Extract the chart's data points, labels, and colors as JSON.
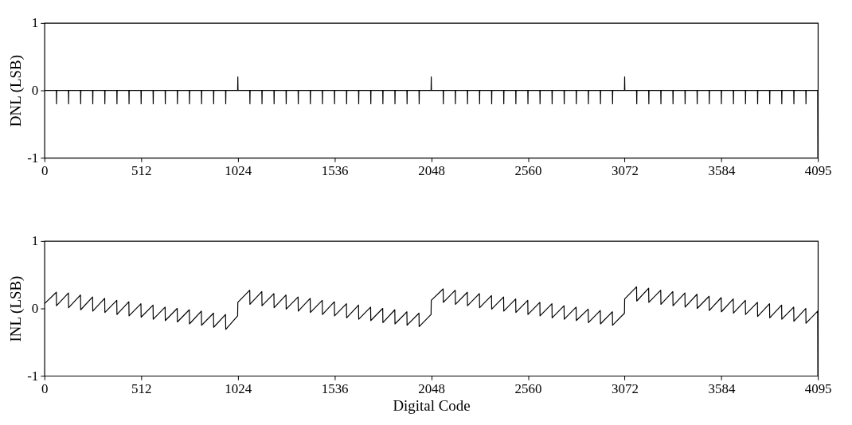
{
  "chart_data": [
    {
      "type": "line",
      "ylabel": "DNL (LSB)",
      "xlim": [
        0,
        4095
      ],
      "xticks": [
        0,
        512,
        1024,
        1536,
        2048,
        2560,
        3072,
        3584,
        4095
      ],
      "ylim": [
        -1,
        1
      ],
      "yticks": [
        -1,
        0,
        1
      ],
      "series": [
        {
          "color": "#000000",
          "x": [
            0,
            63,
            64,
            65,
            127,
            128,
            129,
            191,
            192,
            193,
            255,
            256,
            257,
            319,
            320,
            321,
            383,
            384,
            385,
            447,
            448,
            449,
            511,
            512,
            513,
            575,
            576,
            577,
            639,
            640,
            641,
            703,
            704,
            705,
            767,
            768,
            769,
            831,
            832,
            833,
            895,
            896,
            897,
            959,
            960,
            961,
            1023,
            1024,
            1025,
            1087,
            1088,
            1089,
            1151,
            1152,
            1153,
            1215,
            1216,
            1217,
            1279,
            1280,
            1281,
            1343,
            1344,
            1345,
            1407,
            1408,
            1409,
            1471,
            1472,
            1473,
            1535,
            1536,
            1537,
            1599,
            1600,
            1601,
            1663,
            1664,
            1665,
            1727,
            1728,
            1729,
            1791,
            1792,
            1793,
            1855,
            1856,
            1857,
            1919,
            1920,
            1921,
            1983,
            1984,
            1985,
            2047,
            2048,
            2049,
            2111,
            2112,
            2113,
            2175,
            2176,
            2177,
            2239,
            2240,
            2241,
            2303,
            2304,
            2305,
            2367,
            2368,
            2369,
            2431,
            2432,
            2433,
            2495,
            2496,
            2497,
            2559,
            2560,
            2561,
            2623,
            2624,
            2625,
            2687,
            2688,
            2689,
            2751,
            2752,
            2753,
            2815,
            2816,
            2817,
            2879,
            2880,
            2881,
            2943,
            2944,
            2945,
            3007,
            3008,
            3009,
            3071,
            3072,
            3073,
            3135,
            3136,
            3137,
            3199,
            3200,
            3201,
            3263,
            3264,
            3265,
            3327,
            3328,
            3329,
            3391,
            3392,
            3393,
            3455,
            3456,
            3457,
            3519,
            3520,
            3521,
            3583,
            3584,
            3585,
            3647,
            3648,
            3649,
            3711,
            3712,
            3713,
            3775,
            3776,
            3777,
            3839,
            3840,
            3841,
            3903,
            3904,
            3905,
            3967,
            3968,
            3969,
            4031,
            4032,
            4033,
            4094,
            4095
          ],
          "values": [
            0,
            0,
            -0.2,
            0,
            0,
            -0.2,
            0,
            0,
            -0.2,
            0,
            0,
            -0.2,
            0,
            0,
            -0.2,
            0,
            0,
            -0.2,
            0,
            0,
            -0.2,
            0,
            0,
            -0.2,
            0,
            0,
            -0.2,
            0,
            0,
            -0.2,
            0,
            0,
            -0.2,
            0,
            0,
            -0.2,
            0,
            0,
            -0.2,
            0,
            0,
            -0.2,
            0,
            0,
            -0.2,
            0,
            0,
            0.2,
            0,
            0,
            -0.2,
            0,
            0,
            -0.2,
            0,
            0,
            -0.2,
            0,
            0,
            -0.2,
            0,
            0,
            -0.2,
            0,
            0,
            -0.2,
            0,
            0,
            -0.2,
            0,
            0,
            -0.2,
            0,
            0,
            -0.2,
            0,
            0,
            -0.2,
            0,
            0,
            -0.2,
            0,
            0,
            -0.2,
            0,
            0,
            -0.2,
            0,
            0,
            -0.2,
            0,
            0,
            -0.2,
            0,
            0,
            0.2,
            0,
            0,
            -0.2,
            0,
            0,
            -0.2,
            0,
            0,
            -0.2,
            0,
            0,
            -0.2,
            0,
            0,
            -0.2,
            0,
            0,
            -0.2,
            0,
            0,
            -0.2,
            0,
            0,
            -0.2,
            0,
            0,
            -0.2,
            0,
            0,
            -0.2,
            0,
            0,
            -0.2,
            0,
            0,
            -0.2,
            0,
            0,
            -0.2,
            0,
            0,
            -0.2,
            0,
            0,
            -0.2,
            0,
            0,
            0.2,
            0,
            0,
            -0.2,
            0,
            0,
            -0.2,
            0,
            0,
            -0.2,
            0,
            0,
            -0.2,
            0,
            0,
            -0.2,
            0,
            0,
            -0.2,
            0,
            0,
            -0.2,
            0,
            0,
            -0.2,
            0,
            0,
            -0.2,
            0,
            0,
            -0.2,
            0,
            0,
            -0.2,
            0,
            0,
            -0.2,
            0,
            0,
            -0.2,
            0,
            0,
            -0.2,
            0,
            0,
            -0.2,
            0,
            0,
            -1
          ]
        }
      ]
    },
    {
      "type": "line",
      "xlabel": "Digital Code",
      "ylabel": "INL (LSB)",
      "xlim": [
        0,
        4095
      ],
      "xticks": [
        0,
        512,
        1024,
        1536,
        2048,
        2560,
        3072,
        3584,
        4095
      ],
      "ylim": [
        -1,
        1
      ],
      "yticks": [
        -1,
        0,
        1
      ],
      "series": [
        {
          "color": "#000000",
          "x": [
            0,
            63,
            64,
            127,
            128,
            191,
            192,
            255,
            256,
            319,
            320,
            383,
            384,
            447,
            448,
            511,
            512,
            575,
            576,
            639,
            640,
            703,
            704,
            767,
            768,
            831,
            832,
            895,
            896,
            959,
            960,
            1023,
            1024,
            1087,
            1088,
            1151,
            1152,
            1215,
            1216,
            1279,
            1280,
            1343,
            1344,
            1407,
            1408,
            1471,
            1472,
            1535,
            1536,
            1599,
            1600,
            1663,
            1664,
            1727,
            1728,
            1791,
            1792,
            1855,
            1856,
            1919,
            1920,
            1983,
            1984,
            2047,
            2048,
            2111,
            2112,
            2175,
            2176,
            2239,
            2240,
            2303,
            2304,
            2367,
            2368,
            2431,
            2432,
            2495,
            2496,
            2559,
            2560,
            2623,
            2624,
            2687,
            2688,
            2751,
            2752,
            2815,
            2816,
            2879,
            2880,
            2943,
            2944,
            3007,
            3008,
            3071,
            3072,
            3135,
            3136,
            3199,
            3200,
            3263,
            3264,
            3327,
            3328,
            3391,
            3392,
            3455,
            3456,
            3519,
            3520,
            3583,
            3584,
            3647,
            3648,
            3711,
            3712,
            3775,
            3776,
            3839,
            3840,
            3903,
            3904,
            3967,
            3968,
            4031,
            4032,
            4094,
            4095
          ],
          "values": [
            0.07,
            0.24,
            0.04,
            0.23,
            0.01,
            0.2,
            -0.02,
            0.17,
            -0.04,
            0.15,
            -0.06,
            0.12,
            -0.09,
            0.1,
            -0.11,
            0.07,
            -0.13,
            0.05,
            -0.16,
            0.02,
            -0.18,
            0.0,
            -0.2,
            -0.02,
            -0.23,
            -0.04,
            -0.25,
            -0.07,
            -0.28,
            -0.09,
            -0.31,
            -0.11,
            0.09,
            0.27,
            0.06,
            0.25,
            0.04,
            0.22,
            0.01,
            0.2,
            -0.01,
            0.17,
            -0.04,
            0.15,
            -0.06,
            0.12,
            -0.09,
            0.1,
            -0.11,
            0.07,
            -0.14,
            0.05,
            -0.16,
            0.02,
            -0.18,
            0.0,
            -0.21,
            -0.02,
            -0.23,
            -0.05,
            -0.25,
            -0.07,
            -0.27,
            -0.09,
            0.12,
            0.29,
            0.09,
            0.27,
            0.06,
            0.24,
            0.04,
            0.22,
            0.01,
            0.19,
            -0.01,
            0.17,
            -0.04,
            0.14,
            -0.06,
            0.12,
            -0.09,
            0.09,
            -0.11,
            0.07,
            -0.14,
            0.04,
            -0.16,
            0.02,
            -0.18,
            -0.01,
            -0.21,
            -0.03,
            -0.23,
            -0.05,
            -0.25,
            -0.07,
            0.14,
            0.32,
            0.11,
            0.3,
            0.09,
            0.27,
            0.06,
            0.25,
            0.04,
            0.23,
            0.02,
            0.21,
            0.0,
            0.18,
            -0.03,
            0.16,
            -0.05,
            0.14,
            -0.07,
            0.12,
            -0.09,
            0.09,
            -0.12,
            0.07,
            -0.14,
            0.05,
            -0.16,
            0.02,
            -0.19,
            0.0,
            -0.22,
            -0.04,
            -1
          ]
        }
      ]
    }
  ]
}
